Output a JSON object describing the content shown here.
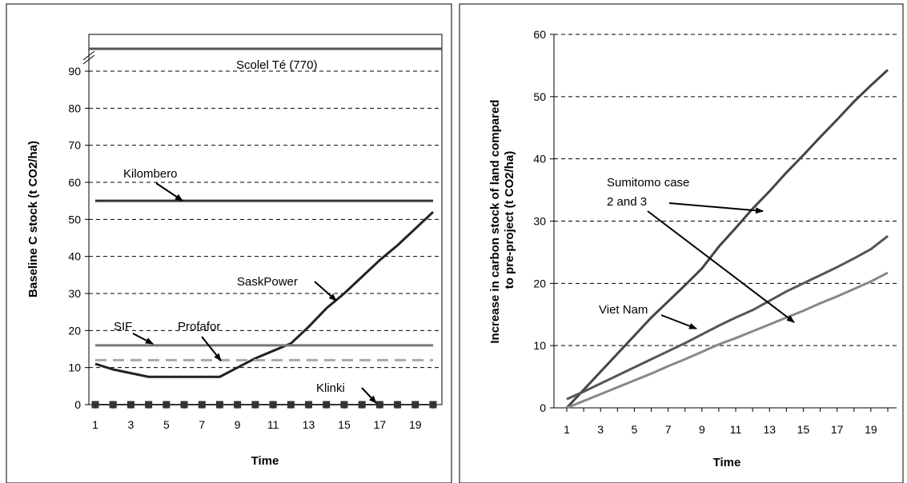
{
  "chart_data": [
    {
      "type": "line",
      "title": "",
      "xlabel": "Time",
      "ylabel": "Baseline C stock (t CO2/ha)",
      "x": [
        1,
        2,
        3,
        4,
        5,
        6,
        7,
        8,
        9,
        10,
        11,
        12,
        13,
        14,
        15,
        16,
        17,
        18,
        19,
        20
      ],
      "xticks": [
        "1",
        "3",
        "5",
        "7",
        "9",
        "11",
        "13",
        "15",
        "17",
        "19"
      ],
      "yticks": [
        "0",
        "10",
        "20",
        "30",
        "40",
        "50",
        "60",
        "70",
        "80",
        "90"
      ],
      "ylim": [
        0,
        100
      ],
      "y_axis_break": "above 90",
      "grid": "horizontal dashed",
      "legend": "none",
      "series": [
        {
          "name": "Scolel Té (770)",
          "color": "#555555",
          "style": "solid",
          "values": [
            770,
            770,
            770,
            770,
            770,
            770,
            770,
            770,
            770,
            770,
            770,
            770,
            770,
            770,
            770,
            770,
            770,
            770,
            770,
            770
          ]
        },
        {
          "name": "Kilombero",
          "color": "#333333",
          "style": "solid",
          "values": [
            55,
            55,
            55,
            55,
            55,
            55,
            55,
            55,
            55,
            55,
            55,
            55,
            55,
            55,
            55,
            55,
            55,
            55,
            55,
            55
          ]
        },
        {
          "name": "SaskPower",
          "color": "#222222",
          "style": "solid",
          "values": [
            11,
            9.5,
            8.5,
            7.5,
            7.5,
            7.5,
            7.5,
            7.5,
            10,
            12.5,
            14.5,
            16.5,
            21,
            26,
            30,
            34.5,
            39,
            43,
            47.5,
            52
          ]
        },
        {
          "name": "SIF",
          "color": "#777777",
          "style": "solid",
          "values": [
            16,
            16,
            16,
            16,
            16,
            16,
            16,
            16,
            16,
            16,
            16,
            16,
            16,
            16,
            16,
            16,
            16,
            16,
            16,
            16
          ]
        },
        {
          "name": "Profafor",
          "color": "#aaaaaa",
          "style": "dashed",
          "values": [
            12,
            12,
            12,
            12,
            12,
            12,
            12,
            12,
            12,
            12,
            12,
            12,
            12,
            12,
            12,
            12,
            12,
            12,
            12,
            12
          ]
        },
        {
          "name": "Klinki",
          "color": "#333333",
          "style": "square-dotted",
          "values": [
            0,
            0,
            0,
            0,
            0,
            0,
            0,
            0,
            0,
            0,
            0,
            0,
            0,
            0,
            0,
            0,
            0,
            0,
            0,
            0
          ]
        }
      ],
      "annotations": [
        {
          "text": "Scolel Té (770)",
          "target": "Scolel Té (770)"
        },
        {
          "text": "Kilombero",
          "target": "Kilombero"
        },
        {
          "text": "SaskPower",
          "target": "SaskPower"
        },
        {
          "text": "SIF",
          "target": "SIF"
        },
        {
          "text": "Profafor",
          "target": "Profafor"
        },
        {
          "text": "Klinki",
          "target": "Klinki"
        }
      ]
    },
    {
      "type": "line",
      "title": "",
      "xlabel": "Time",
      "ylabel": "Increase in carbon stock of land compared to pre-project (t CO2/ha)",
      "x": [
        1,
        2,
        3,
        4,
        5,
        6,
        7,
        8,
        9,
        10,
        11,
        12,
        13,
        14,
        15,
        16,
        17,
        18,
        19,
        20
      ],
      "xticks": [
        "1",
        "3",
        "5",
        "7",
        "9",
        "11",
        "13",
        "15",
        "17",
        "19"
      ],
      "yticks": [
        "0",
        "10",
        "20",
        "30",
        "40",
        "50",
        "60"
      ],
      "ylim": [
        0,
        60
      ],
      "grid": "horizontal dashed",
      "legend": "none",
      "series": [
        {
          "name": "Sumitomo case 2 and 3",
          "color": "#444444",
          "style": "solid",
          "values": [
            0,
            2.9,
            5.8,
            8.7,
            11.6,
            14.5,
            17.1,
            19.7,
            22.4,
            25.9,
            28.9,
            32,
            34.8,
            37.8,
            40.6,
            43.5,
            46.3,
            49.2,
            51.8,
            54.3
          ]
        },
        {
          "name": "Viet Nam",
          "color": "#555555",
          "style": "solid",
          "values": [
            1.4,
            2.6,
            3.9,
            5.2,
            6.5,
            7.8,
            9.1,
            10.4,
            11.8,
            13.2,
            14.5,
            15.7,
            17.2,
            18.7,
            20,
            21.3,
            22.6,
            24,
            25.5,
            27.6
          ]
        },
        {
          "name": "",
          "color": "#888888",
          "style": "solid",
          "values": [
            0,
            1.1,
            2.2,
            3.3,
            4.4,
            5.5,
            6.7,
            7.8,
            9,
            10.2,
            11.2,
            12.3,
            13.4,
            14.5,
            15.6,
            16.8,
            17.9,
            19.1,
            20.3,
            21.7
          ]
        }
      ],
      "annotations": [
        {
          "text": "Sumitomo case",
          "target": "Sumitomo case 2 and 3"
        },
        {
          "text": "2 and 3",
          "target": "Sumitomo case 2 and 3"
        },
        {
          "text": "Viet Nam",
          "target": "Viet Nam"
        }
      ]
    }
  ]
}
